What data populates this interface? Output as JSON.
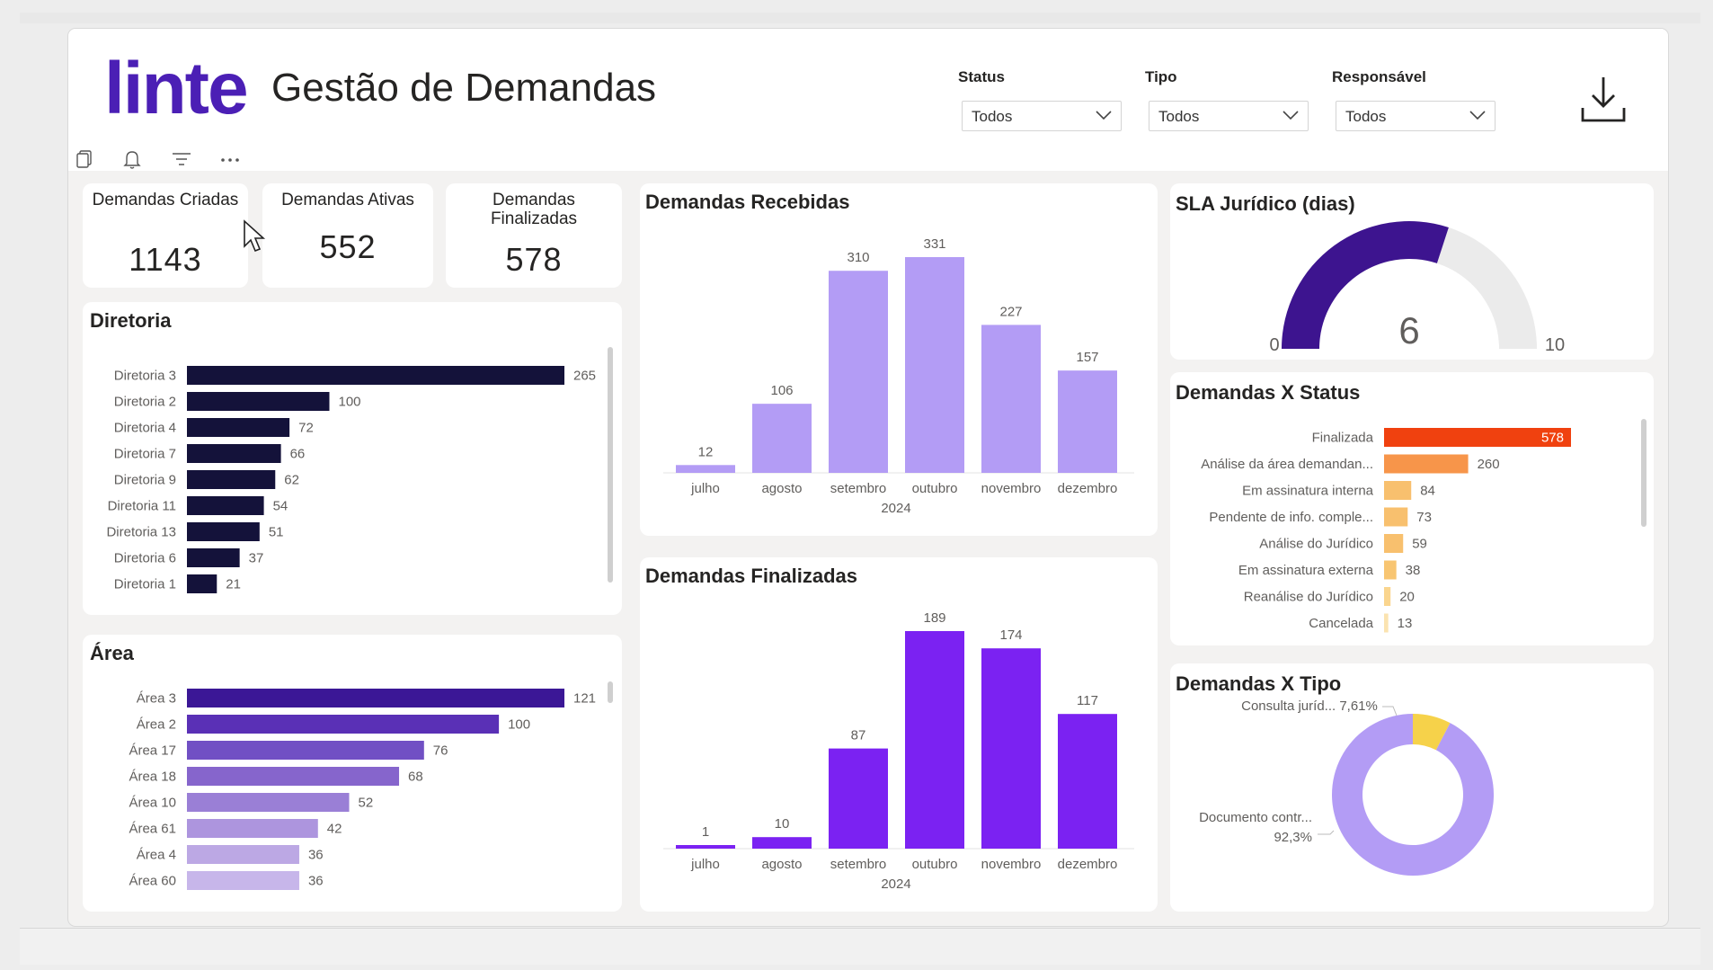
{
  "header": {
    "logo": "linte",
    "title": "Gestão de Demandas",
    "filters": [
      {
        "label": "Status",
        "value": "Todos"
      },
      {
        "label": "Tipo",
        "value": "Todos"
      },
      {
        "label": "Responsável",
        "value": "Todos"
      }
    ]
  },
  "kpis": [
    {
      "label": "Demandas Criadas",
      "value": "1143"
    },
    {
      "label": "Demandas Ativas",
      "value": "552"
    },
    {
      "label": "Demandas Finalizadas",
      "value": "578"
    }
  ],
  "colors": {
    "logo": "#4b1fb5",
    "diretoria_bar": "#14123a",
    "recebidas_bar": "#b39cf5",
    "finalizadas_bar": "#7b22f2",
    "gauge_fill": "#3d148f",
    "gauge_track": "#ebebeb",
    "status_top": "#f0410f",
    "donut_main": "#b39cf5",
    "donut_minor": "#f6d24a"
  },
  "chart_data": [
    {
      "id": "diretoria",
      "type": "bar",
      "orientation": "horizontal",
      "title": "Diretoria",
      "categories": [
        "Diretoria 3",
        "Diretoria 2",
        "Diretoria 4",
        "Diretoria 7",
        "Diretoria 9",
        "Diretoria 11",
        "Diretoria 13",
        "Diretoria 6",
        "Diretoria 1"
      ],
      "values": [
        265,
        100,
        72,
        66,
        62,
        54,
        51,
        37,
        21
      ]
    },
    {
      "id": "area",
      "type": "bar",
      "orientation": "horizontal",
      "title": "Área",
      "categories": [
        "Área 3",
        "Área 2",
        "Área 17",
        "Área 18",
        "Área 10",
        "Área 61",
        "Área 4",
        "Área 60"
      ],
      "values": [
        121,
        100,
        76,
        68,
        52,
        42,
        36,
        36
      ],
      "colors": [
        "#3b1796",
        "#5a30b6",
        "#7150c4",
        "#8665cc",
        "#9a7fd6",
        "#ad95de",
        "#bca8e4",
        "#c7b6ea"
      ]
    },
    {
      "id": "recebidas",
      "type": "bar",
      "title": "Demandas Recebidas",
      "categories": [
        "julho",
        "agosto",
        "setembro",
        "outubro",
        "novembro",
        "dezembro"
      ],
      "xlabel": "2024",
      "values": [
        12,
        106,
        310,
        331,
        227,
        157
      ]
    },
    {
      "id": "finalizadas",
      "type": "bar",
      "title": "Demandas Finalizadas",
      "categories": [
        "julho",
        "agosto",
        "setembro",
        "outubro",
        "novembro",
        "dezembro"
      ],
      "xlabel": "2024",
      "values": [
        1,
        10,
        87,
        189,
        174,
        117
      ]
    },
    {
      "id": "sla",
      "type": "gauge",
      "title": "SLA Jurídico (dias)",
      "min": 0,
      "max": 10,
      "value": 6,
      "min_label": "0",
      "max_label": "10",
      "value_label": "6"
    },
    {
      "id": "status",
      "type": "bar",
      "orientation": "horizontal",
      "title": "Demandas X Status",
      "categories": [
        "Finalizada",
        "Análise da área demandan...",
        "Em assinatura interna",
        "Pendente de info. comple...",
        "Análise do Jurídico",
        "Em assinatura externa",
        "Reanálise do Jurídico",
        "Cancelada"
      ],
      "values": [
        578,
        260,
        84,
        73,
        59,
        38,
        20,
        13
      ],
      "colors": [
        "#f0410f",
        "#f7954a",
        "#f8c06e",
        "#f8c06e",
        "#f8c06e",
        "#f8c571",
        "#fad58e",
        "#fbe3b0"
      ]
    },
    {
      "id": "tipo",
      "type": "pie",
      "donut": true,
      "title": "Demandas X Tipo",
      "slices": [
        {
          "label": "Documento contr...",
          "value": 92.3,
          "display": "92,3%"
        },
        {
          "label": "Consulta juríd...",
          "value": 7.61,
          "display": "7,61%"
        }
      ]
    }
  ]
}
